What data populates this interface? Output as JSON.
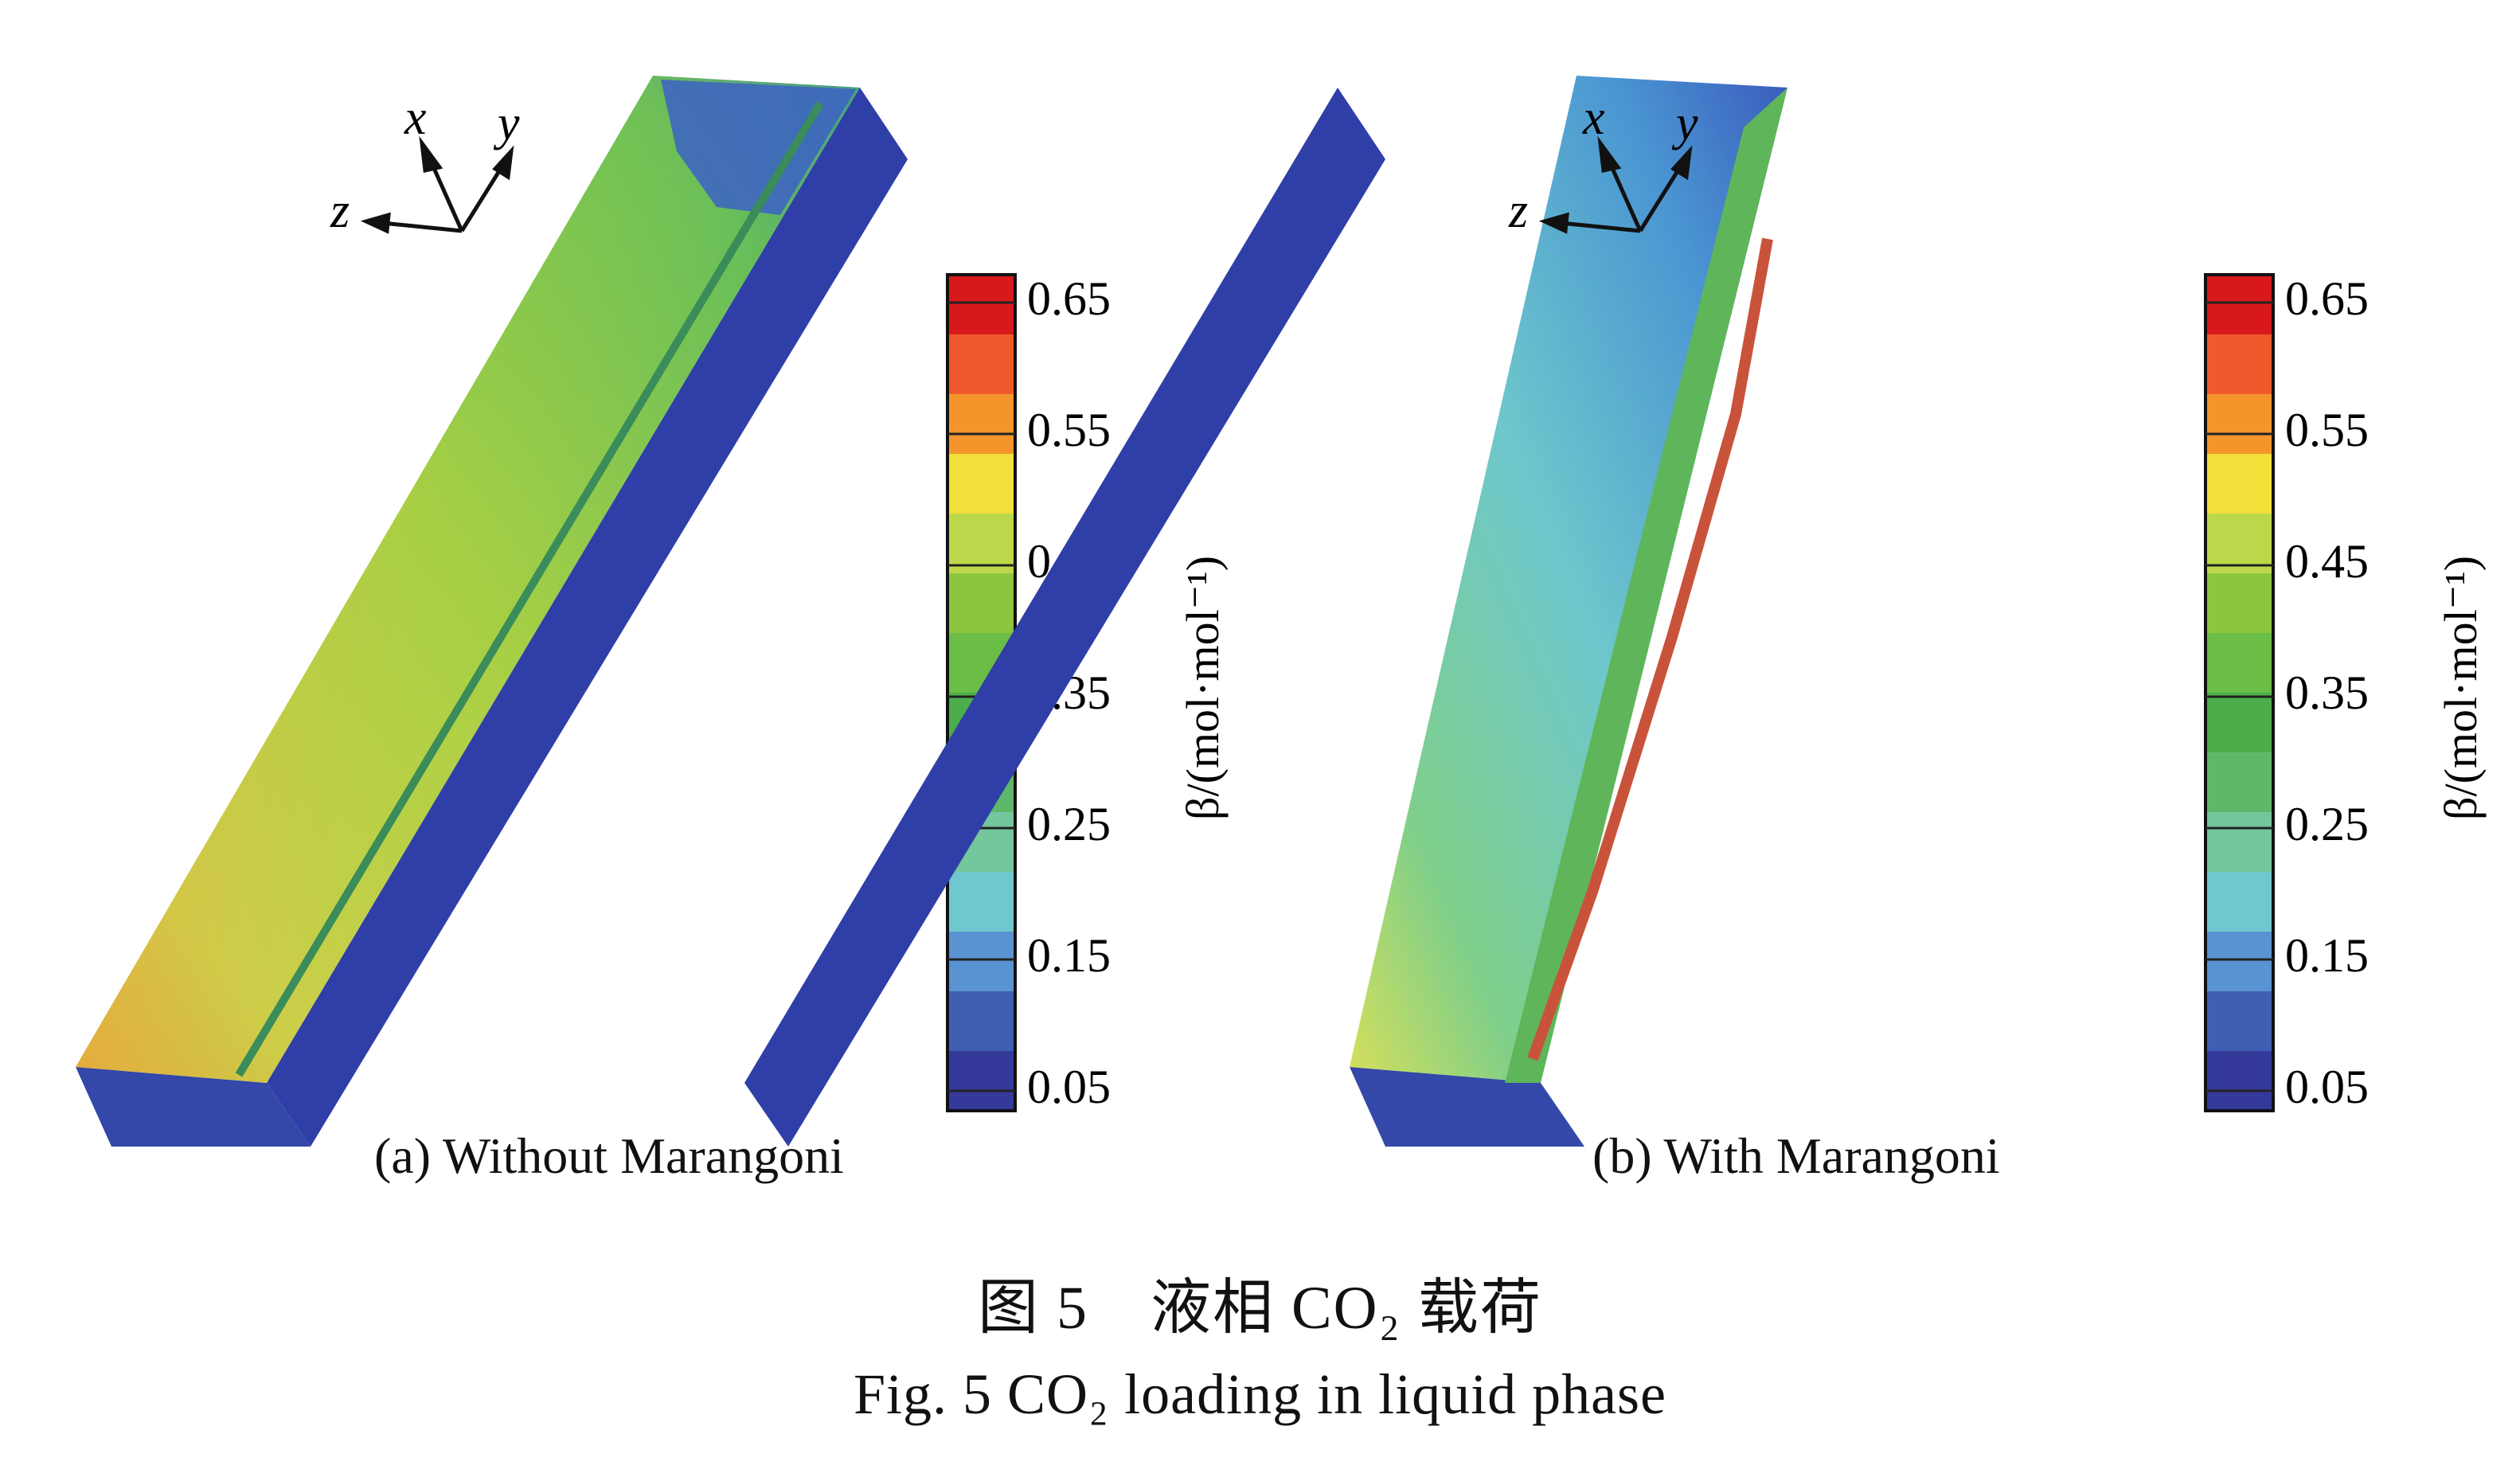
{
  "figure": {
    "caption_cn": "图 5　液相 CO₂ 载荷",
    "caption_en": "Fig. 5  CO₂ loading in liquid phase"
  },
  "panels": [
    {
      "label": "(a) Without Marangoni"
    },
    {
      "label": "(b) With Marangoni"
    }
  ],
  "axes_triad": {
    "x": "x",
    "y": "y",
    "z": "z"
  },
  "colorbar": {
    "label": "β/(mol·mol⁻¹)",
    "ticks": [
      "0.65",
      "0.55",
      "0.45",
      "0.35",
      "0.25",
      "0.15",
      "0.05"
    ],
    "colors": [
      "#d7191c",
      "#ef5a2c",
      "#f4952c",
      "#f2df3a",
      "#bcd84a",
      "#8cc63f",
      "#6abd45",
      "#4cae4a",
      "#5fb86a",
      "#74c69d",
      "#6fc8cf",
      "#5a93d1",
      "#3f5fb2",
      "#34399a"
    ]
  }
}
